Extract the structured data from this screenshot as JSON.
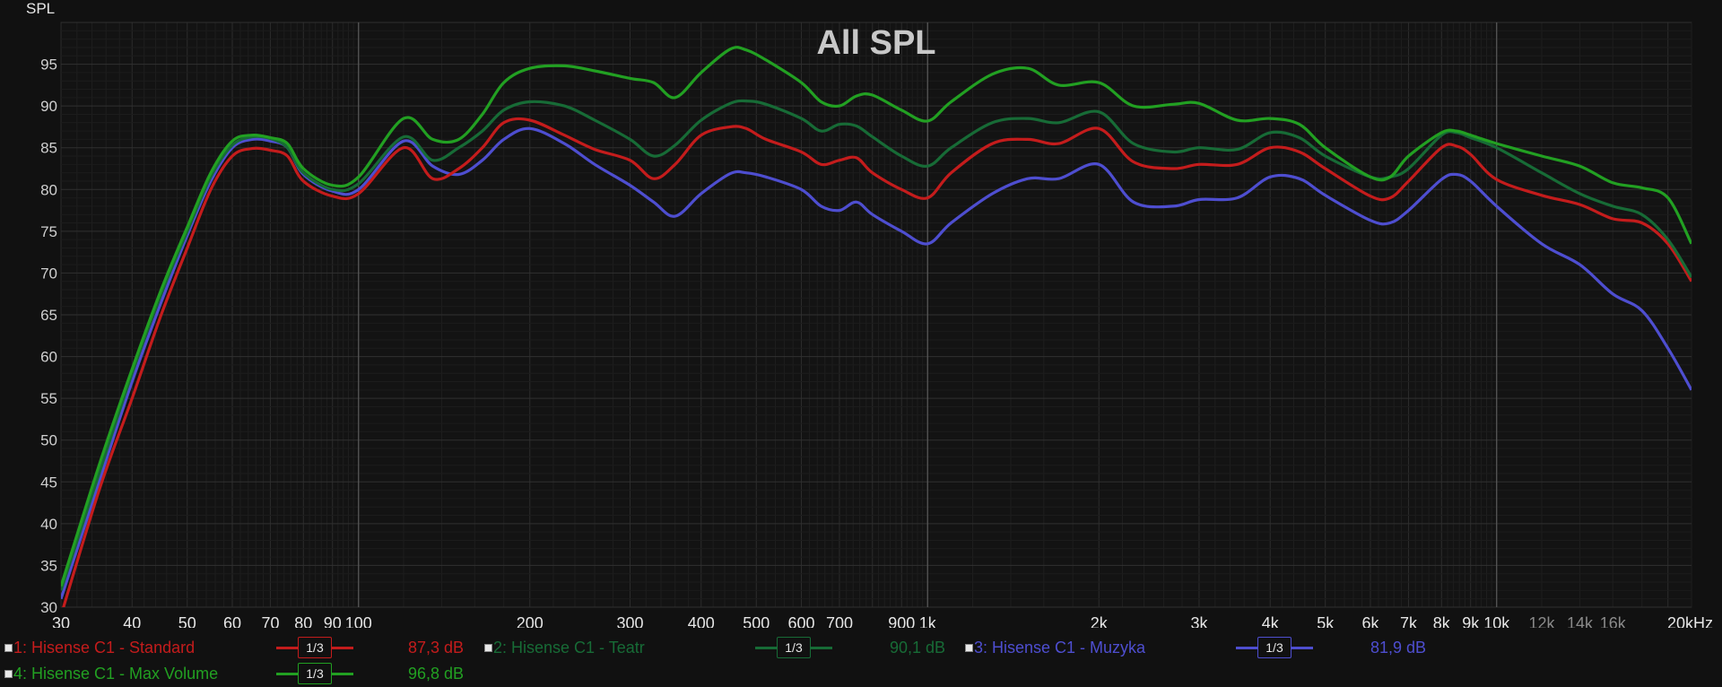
{
  "chart_data": {
    "type": "line",
    "title": "All SPL",
    "ylabel": "SPL",
    "xlabel": "",
    "x_scale": "log",
    "xlim": [
      30,
      22000
    ],
    "ylim": [
      30,
      100
    ],
    "grid": true,
    "y_ticks": [
      30,
      35,
      40,
      45,
      50,
      55,
      60,
      65,
      70,
      75,
      80,
      85,
      90,
      95
    ],
    "x_ticks": [
      {
        "value": 30,
        "label": "30"
      },
      {
        "value": 40,
        "label": "40"
      },
      {
        "value": 50,
        "label": "50"
      },
      {
        "value": 60,
        "label": "60"
      },
      {
        "value": 70,
        "label": "70"
      },
      {
        "value": 80,
        "label": "80"
      },
      {
        "value": 90,
        "label": "90"
      },
      {
        "value": 100,
        "label": "100"
      },
      {
        "value": 200,
        "label": "200"
      },
      {
        "value": 300,
        "label": "300"
      },
      {
        "value": 400,
        "label": "400"
      },
      {
        "value": 500,
        "label": "500"
      },
      {
        "value": 600,
        "label": "600"
      },
      {
        "value": 700,
        "label": "700"
      },
      {
        "value": 900,
        "label": "900"
      },
      {
        "value": 1000,
        "label": "1k"
      },
      {
        "value": 2000,
        "label": "2k"
      },
      {
        "value": 3000,
        "label": "3k"
      },
      {
        "value": 4000,
        "label": "4k"
      },
      {
        "value": 5000,
        "label": "5k"
      },
      {
        "value": 6000,
        "label": "6k"
      },
      {
        "value": 7000,
        "label": "7k"
      },
      {
        "value": 8000,
        "label": "8k"
      },
      {
        "value": 9000,
        "label": "9k"
      },
      {
        "value": 10000,
        "label": "10k"
      },
      {
        "value": 12000,
        "label": "12k",
        "dim": true
      },
      {
        "value": 14000,
        "label": "14k",
        "dim": true
      },
      {
        "value": 16000,
        "label": "16k",
        "dim": true
      },
      {
        "value": 22000,
        "label": "20kHz"
      }
    ],
    "series": [
      {
        "name": "1: Hisense C1 - Standard",
        "color": "#c41c1c",
        "smoothing": "1/3",
        "value_label": "87,3 dB",
        "x": [
          30,
          35,
          40,
          45,
          50,
          55,
          60,
          65,
          70,
          75,
          80,
          90,
          100,
          120,
          135,
          150,
          165,
          180,
          200,
          230,
          260,
          300,
          330,
          360,
          400,
          450,
          480,
          520,
          600,
          650,
          700,
          750,
          800,
          900,
          1000,
          1100,
          1300,
          1500,
          1700,
          2000,
          2300,
          2700,
          3000,
          3500,
          4000,
          4500,
          5000,
          6000,
          6500,
          7000,
          8000,
          8500,
          9000,
          10000,
          12000,
          14000,
          16000,
          18000,
          20000,
          22000
        ],
        "y": [
          29,
          44,
          55,
          65,
          73,
          80,
          84,
          84.9,
          84.7,
          84,
          81,
          79.2,
          79.5,
          85,
          81.3,
          82.5,
          85,
          88,
          88.3,
          86.5,
          84.8,
          83.5,
          81.3,
          83,
          86.5,
          87.5,
          87.3,
          86,
          84.5,
          83,
          83.5,
          83.8,
          82,
          80,
          79,
          82,
          85.5,
          86,
          85.5,
          87.3,
          83.3,
          82.5,
          83,
          83,
          85,
          84.5,
          82.5,
          79.2,
          79,
          81,
          85,
          85.2,
          84.2,
          81.2,
          79.3,
          78.2,
          76.5,
          76,
          73.5,
          69
        ]
      },
      {
        "name": "2: Hisense C1 - Teatr",
        "color": "#176b36",
        "smoothing": "1/3",
        "value_label": "90,1 dB",
        "x": [
          30,
          35,
          40,
          45,
          50,
          55,
          60,
          65,
          70,
          75,
          80,
          90,
          100,
          120,
          135,
          150,
          165,
          180,
          200,
          230,
          260,
          300,
          330,
          360,
          400,
          450,
          480,
          520,
          600,
          650,
          700,
          750,
          800,
          900,
          1000,
          1100,
          1300,
          1500,
          1700,
          2000,
          2300,
          2700,
          3000,
          3500,
          4000,
          4500,
          5000,
          6000,
          6500,
          7000,
          8000,
          8500,
          9000,
          10000,
          12000,
          14000,
          16000,
          18000,
          20000,
          22000
        ],
        "y": [
          32,
          46,
          58,
          67.5,
          75,
          81.5,
          85.3,
          86.3,
          86.1,
          85,
          82,
          80,
          80.7,
          86.3,
          83.5,
          85,
          87,
          89.5,
          90.5,
          90,
          88.3,
          86,
          84,
          85.3,
          88.3,
          90.3,
          90.6,
          90.2,
          88.5,
          87,
          87.8,
          87.6,
          86.3,
          84,
          82.8,
          85,
          88,
          88.5,
          88,
          89.3,
          85.5,
          84.5,
          85,
          84.8,
          86.8,
          86.2,
          84,
          81.5,
          81.5,
          82.5,
          86.5,
          86.8,
          86.2,
          85,
          82,
          79.5,
          78,
          77,
          74,
          69.5
        ]
      },
      {
        "name": "3: Hisense C1 - Muzyka",
        "color": "#4e4ed0",
        "smoothing": "1/3",
        "value_label": "81,9 dB",
        "x": [
          30,
          35,
          40,
          45,
          50,
          55,
          60,
          65,
          70,
          75,
          80,
          90,
          100,
          120,
          135,
          150,
          165,
          180,
          200,
          230,
          260,
          300,
          330,
          360,
          400,
          450,
          480,
          520,
          600,
          650,
          700,
          750,
          800,
          900,
          1000,
          1100,
          1300,
          1500,
          1700,
          2000,
          2300,
          2700,
          3000,
          3500,
          4000,
          4500,
          5000,
          6000,
          6500,
          7000,
          8000,
          8500,
          9000,
          10000,
          12000,
          14000,
          16000,
          18000,
          20000,
          22000
        ],
        "y": [
          31,
          45,
          57,
          66.5,
          74.5,
          81,
          85,
          86,
          85.8,
          85,
          81.8,
          79.8,
          80,
          85.8,
          82.8,
          81.8,
          83.5,
          86,
          87.3,
          85.5,
          83,
          80.5,
          78.5,
          76.8,
          79.5,
          81.9,
          82,
          81.5,
          80,
          78,
          77.5,
          78.5,
          77,
          75,
          73.5,
          76,
          79.5,
          81.3,
          81.3,
          83,
          78.5,
          78,
          78.8,
          79,
          81.5,
          81.3,
          79.3,
          76.3,
          76,
          77.5,
          81.2,
          81.8,
          81,
          78,
          73.5,
          71,
          67.5,
          65.5,
          61,
          56
        ]
      },
      {
        "name": "4: Hisense C1 - Max Volume",
        "color": "#22a022",
        "smoothing": "1/3",
        "value_label": "96,8 dB",
        "x": [
          30,
          35,
          40,
          45,
          50,
          55,
          60,
          65,
          70,
          75,
          80,
          90,
          100,
          120,
          135,
          150,
          165,
          180,
          200,
          230,
          260,
          300,
          330,
          360,
          400,
          450,
          480,
          520,
          600,
          650,
          700,
          750,
          800,
          900,
          1000,
          1100,
          1300,
          1500,
          1700,
          2000,
          2300,
          2700,
          3000,
          3500,
          4000,
          4500,
          5000,
          6000,
          6500,
          7000,
          8000,
          8500,
          9000,
          10000,
          12000,
          14000,
          16000,
          18000,
          20000,
          22000
        ],
        "y": [
          32.5,
          47,
          58.5,
          68,
          75.5,
          82,
          85.8,
          86.5,
          86.2,
          85.5,
          82.5,
          80.5,
          81.5,
          88.5,
          86,
          86,
          89,
          92.8,
          94.5,
          94.8,
          94.2,
          93.3,
          92.8,
          91,
          94,
          96.8,
          96.7,
          95.5,
          92.8,
          90.5,
          90,
          91.2,
          91.3,
          89.5,
          88.2,
          90.5,
          93.8,
          94.5,
          92.5,
          92.8,
          90,
          90.2,
          90.3,
          88.3,
          88.5,
          87.8,
          85,
          81.5,
          81.5,
          84,
          86.8,
          87,
          86.5,
          85.5,
          84,
          82.8,
          80.8,
          80.2,
          79,
          73.5
        ]
      }
    ]
  }
}
